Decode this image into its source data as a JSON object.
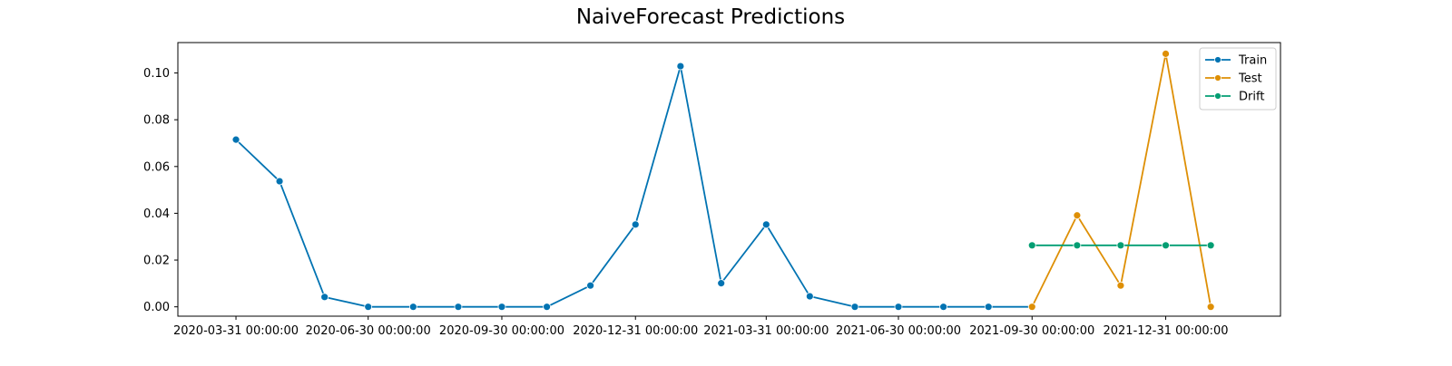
{
  "chart_data": {
    "type": "line",
    "title": "NaiveForecast Predictions",
    "xlabel": "",
    "ylabel": "",
    "ylim": [
      -0.004,
      0.113
    ],
    "xlim": [
      "2020-02-20",
      "2022-03-20"
    ],
    "yticks": [
      0.0,
      0.02,
      0.04,
      0.06,
      0.08,
      0.1
    ],
    "ytick_labels": [
      "0.00",
      "0.02",
      "0.04",
      "0.06",
      "0.08",
      "0.10"
    ],
    "xticks": [
      "2020-03-31",
      "2020-06-30",
      "2020-09-30",
      "2020-12-31",
      "2021-03-31",
      "2021-06-30",
      "2021-09-30",
      "2021-12-31"
    ],
    "xtick_labels": [
      "2020-03-31 00:00:00",
      "2020-06-30 00:00:00",
      "2020-09-30 00:00:00",
      "2020-12-31 00:00:00",
      "2021-03-31 00:00:00",
      "2021-06-30 00:00:00",
      "2021-09-30 00:00:00",
      "2021-12-31 00:00:00"
    ],
    "grid": false,
    "legend_position": "top-right",
    "series": [
      {
        "name": "Train",
        "color": "#0173b2",
        "marker": "circle",
        "x": [
          "2020-03-31",
          "2020-04-30",
          "2020-05-31",
          "2020-06-30",
          "2020-07-31",
          "2020-08-31",
          "2020-09-30",
          "2020-10-31",
          "2020-11-30",
          "2020-12-31",
          "2021-01-31",
          "2021-02-28",
          "2021-03-31",
          "2021-04-30",
          "2021-05-31",
          "2021-06-30",
          "2021-07-31",
          "2021-08-31",
          "2021-09-30"
        ],
        "values": [
          0.0715,
          0.0537,
          0.0042,
          0.0,
          0.0,
          0.0,
          0.0,
          0.0,
          0.0091,
          0.0352,
          0.1029,
          0.0101,
          0.0352,
          0.0045,
          0.0,
          0.0,
          0.0,
          0.0,
          0.0
        ]
      },
      {
        "name": "Test",
        "color": "#de8f05",
        "marker": "circle",
        "x": [
          "2021-09-30",
          "2021-10-31",
          "2021-11-30",
          "2021-12-31",
          "2022-01-31"
        ],
        "values": [
          0.0,
          0.0391,
          0.0091,
          0.1082,
          0.0
        ]
      },
      {
        "name": "Drift",
        "color": "#029e73",
        "marker": "circle",
        "x": [
          "2021-09-30",
          "2021-10-31",
          "2021-11-30",
          "2021-12-31",
          "2022-01-31"
        ],
        "values": [
          0.0263,
          0.0263,
          0.0263,
          0.0263,
          0.0263
        ]
      }
    ]
  }
}
